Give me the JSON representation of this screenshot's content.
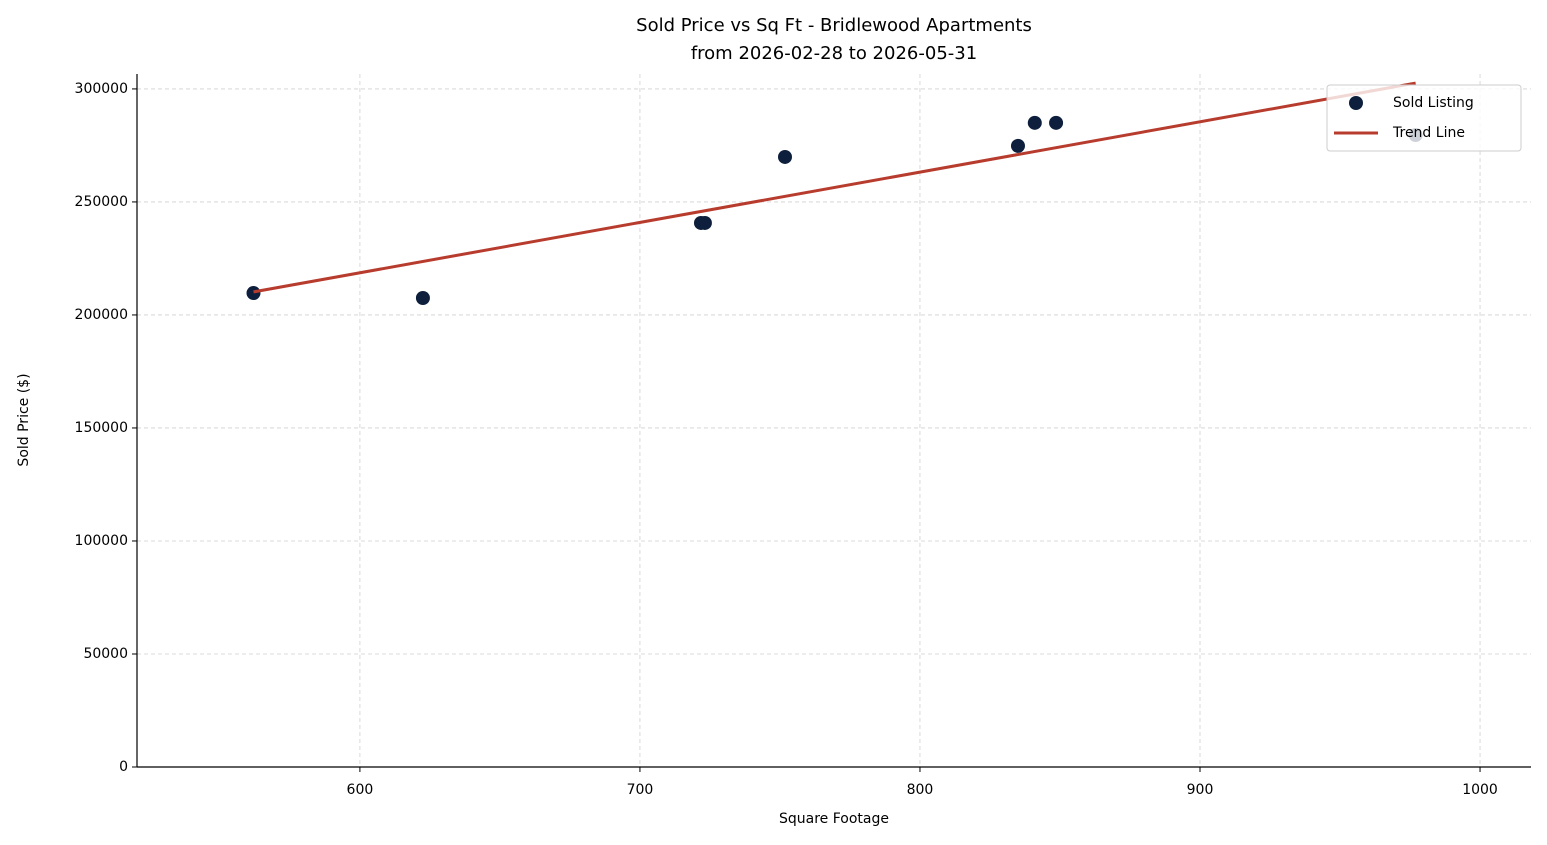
{
  "chart_data": {
    "type": "scatter",
    "title": "Sold Price vs Sq Ft - Bridlewood Apartments",
    "subtitle": "from 2026-02-28 to 2026-05-31",
    "x_label": "Square Footage",
    "y_label": "Sold Price ($)",
    "xlim": [
      520.4,
      1018.2
    ],
    "ylim": [
      0,
      306600
    ],
    "xticks": [
      600,
      700,
      800,
      900,
      1000
    ],
    "yticks": [
      0,
      50000,
      100000,
      150000,
      200000,
      250000,
      300000
    ],
    "grid": true,
    "legend": "upper right",
    "series": [
      {
        "name": "Sold Listing",
        "type": "scatter",
        "color": "#0d1f3c",
        "x": [
          562,
          622.5,
          721.8,
          723.2,
          751.8,
          835,
          841,
          848.6,
          977
        ],
        "values": [
          209700,
          207500,
          240700,
          240700,
          269900,
          274800,
          285000,
          285000,
          279600
        ]
      },
      {
        "name": "Trend Line",
        "type": "line",
        "color": "#b83c2e",
        "x": [
          562,
          977
        ],
        "values": [
          210200,
          302600
        ]
      }
    ]
  }
}
